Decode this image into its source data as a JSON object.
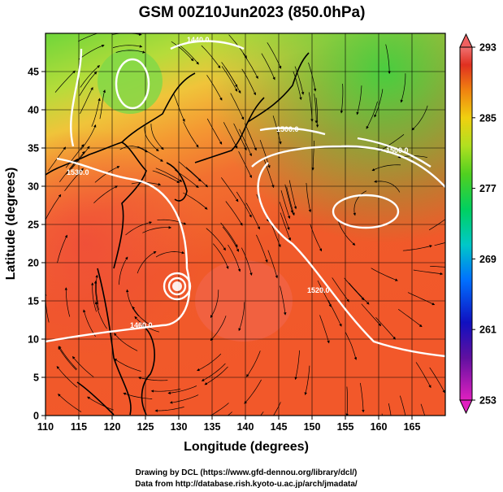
{
  "title": "GSM 00Z10Jun2023 (850.0hPa)",
  "x_axis": {
    "label": "Longitude (degrees)",
    "ticks": [
      "110",
      "115",
      "120",
      "125",
      "130",
      "135",
      "140",
      "145",
      "150",
      "155",
      "160",
      "165"
    ],
    "range": [
      110,
      170
    ]
  },
  "y_axis": {
    "label": "Latitude  (degrees)",
    "ticks": [
      "0",
      "5",
      "10",
      "15",
      "20",
      "25",
      "30",
      "35",
      "40",
      "45"
    ],
    "range": [
      0,
      50
    ]
  },
  "colorbar": {
    "ticks": [
      "253",
      "261",
      "269",
      "277",
      "285",
      "293"
    ],
    "range": [
      253,
      293
    ],
    "colors": [
      "#e020c0",
      "#5010a0",
      "#1010c0",
      "#0060ff",
      "#00c0d0",
      "#00d070",
      "#30d020",
      "#a0e020",
      "#f0e010",
      "#f0a010",
      "#f05010",
      "#e02020",
      "#f07070"
    ]
  },
  "contour_labels": [
    "1440.0",
    "1500.0",
    "1500.0",
    "1530.0",
    "1520.0",
    "1460.0"
  ],
  "credits": {
    "line1": "Drawing by DCL (https://www.gfd-dennou.org/library/dcl/)",
    "line2": "Data from http://database.rish.kyoto-u.ac.jp/arch/jmadata/"
  }
}
